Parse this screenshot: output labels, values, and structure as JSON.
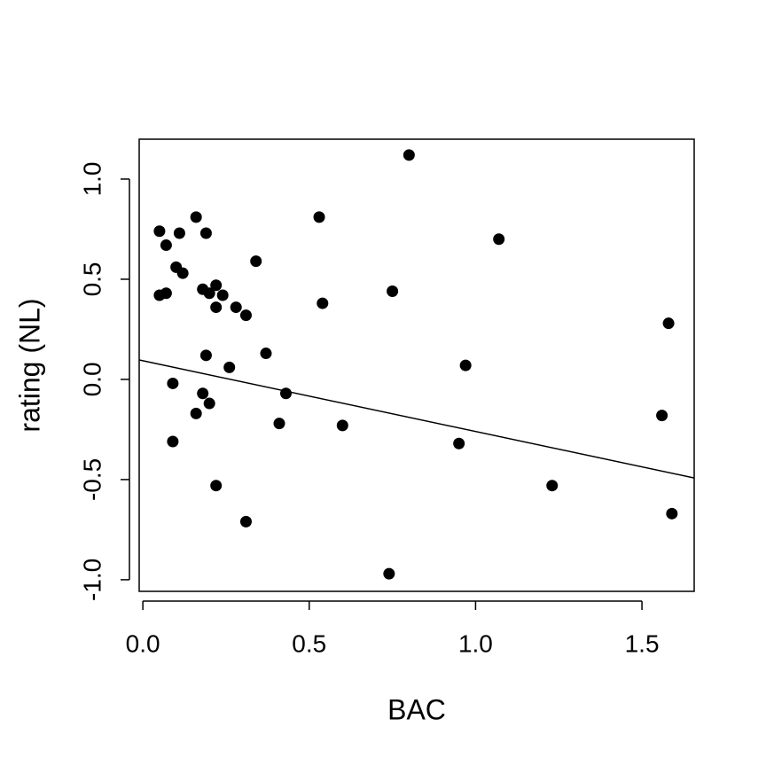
{
  "chart_data": {
    "type": "scatter",
    "x_label": "BAC",
    "y_label": "rating (NL)",
    "x": [
      0.05,
      0.07,
      0.05,
      0.07,
      0.16,
      0.11,
      0.19,
      0.1,
      0.12,
      0.18,
      0.2,
      0.22,
      0.24,
      0.22,
      0.28,
      0.31,
      0.34,
      0.53,
      0.54,
      0.75,
      0.8,
      1.07,
      1.58,
      0.19,
      0.26,
      0.37,
      0.97,
      0.09,
      0.18,
      0.43,
      0.16,
      0.2,
      0.41,
      0.6,
      1.56,
      0.09,
      0.95,
      0.22,
      1.23,
      0.31,
      1.59,
      0.74
    ],
    "y": [
      0.74,
      0.67,
      0.42,
      0.43,
      0.81,
      0.73,
      0.73,
      0.56,
      0.53,
      0.45,
      0.43,
      0.47,
      0.42,
      0.36,
      0.36,
      0.32,
      0.59,
      0.81,
      0.38,
      0.44,
      1.12,
      0.7,
      0.28,
      0.12,
      0.06,
      0.13,
      0.07,
      -0.02,
      -0.07,
      -0.07,
      -0.17,
      -0.12,
      -0.22,
      -0.23,
      -0.18,
      -0.31,
      -0.32,
      -0.53,
      -0.53,
      -0.71,
      -0.67,
      -0.97
    ],
    "color": "#000000",
    "fit": {
      "intercept": 0.093,
      "slope": -0.353
    },
    "xlim": [
      -0.011,
      1.657
    ],
    "ylim": [
      -1.058,
      1.199
    ],
    "xticks": [
      {
        "value": 0,
        "label": "0.0"
      },
      {
        "value": 0.5,
        "label": "0.5"
      },
      {
        "value": 1,
        "label": "1.0"
      },
      {
        "value": 1.5,
        "label": "1.5"
      }
    ],
    "yticks": [
      {
        "value": -1,
        "label": "-1.0"
      },
      {
        "value": -0.5,
        "label": "-0.5"
      },
      {
        "value": 0,
        "label": "0.0"
      },
      {
        "value": 0.5,
        "label": "0.5"
      },
      {
        "value": 1,
        "label": "1.0"
      }
    ]
  }
}
